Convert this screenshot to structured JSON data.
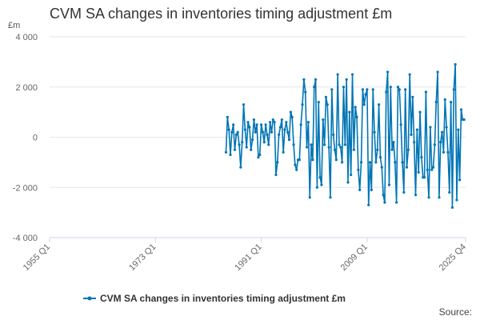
{
  "title": "CVM SA changes in inventories timing adjustment £m",
  "y_unit": "£m",
  "source_label": "Source:",
  "colors": {
    "series": "#0075B5",
    "grid": "#e6e6e6",
    "axis": "#ccd6eb",
    "text": "#333333"
  },
  "chart_data": {
    "type": "line",
    "title": "CVM SA changes in inventories timing adjustment £m",
    "xlabel": "",
    "ylabel": "£m",
    "ylim": [
      -4000,
      4000
    ],
    "y_ticks": [
      4000,
      2000,
      0,
      -2000,
      -4000
    ],
    "y_tick_labels": [
      "4 000",
      "2 000",
      "0",
      "-2 000",
      "-4 000"
    ],
    "x_ticks": [
      "1955 Q1",
      "1973 Q1",
      "1991 Q1",
      "2009 Q1",
      "2025 Q4"
    ],
    "x_range": [
      "1955 Q1",
      "2025 Q4"
    ],
    "grid": true,
    "legend_position": "bottom",
    "series": [
      {
        "name": "CVM SA changes in inventories timing adjustment £m",
        "start": "1985 Q1",
        "values": [
          -600,
          800,
          300,
          -700,
          200,
          500,
          -500,
          100,
          200,
          -300,
          -1200,
          -200,
          1300,
          300,
          -400,
          600,
          400,
          -500,
          -100,
          700,
          200,
          500,
          -800,
          -700,
          500,
          200,
          -200,
          500,
          100,
          -300,
          600,
          200,
          700,
          600,
          -1500,
          -1000,
          100,
          400,
          700,
          -600,
          300,
          600,
          200,
          -100,
          1000,
          800,
          -300,
          -1100,
          -1300,
          -900,
          -900,
          500,
          1300,
          2300,
          1800,
          -400,
          600,
          -2400,
          -300,
          -900,
          2000,
          2300,
          -2000,
          1400,
          -1600,
          -1900,
          700,
          -300,
          1600,
          1300,
          -400,
          -2400,
          1900,
          100,
          -500,
          -900,
          2500,
          -300,
          -400,
          -1000,
          2000,
          -300,
          2300,
          -1800,
          1000,
          -1500,
          2500,
          -500,
          1200,
          800,
          -1300,
          -2100,
          -1000,
          1900,
          1300,
          1700,
          1900,
          -2700,
          -1000,
          -2100,
          1900,
          200,
          -1000,
          -500,
          1300,
          -800,
          -1200,
          -2300,
          -2600,
          1800,
          2600,
          -1900,
          2000,
          -500,
          -200,
          -1000,
          -2600,
          2000,
          1900,
          500,
          -1000,
          -2200,
          1900,
          -1200,
          -500,
          2500,
          100,
          1600,
          -200,
          -2300,
          300,
          -1400,
          1000,
          -800,
          -1600,
          -1600,
          1800,
          -1300,
          -2400,
          400,
          -1300,
          -1200,
          -300,
          1400,
          2600,
          -2400,
          -200,
          200,
          -600,
          1500,
          400,
          -600,
          -2200,
          1400,
          -2800,
          1900,
          2900,
          -2500,
          300,
          -1700,
          1100,
          700,
          700
        ]
      }
    ]
  }
}
